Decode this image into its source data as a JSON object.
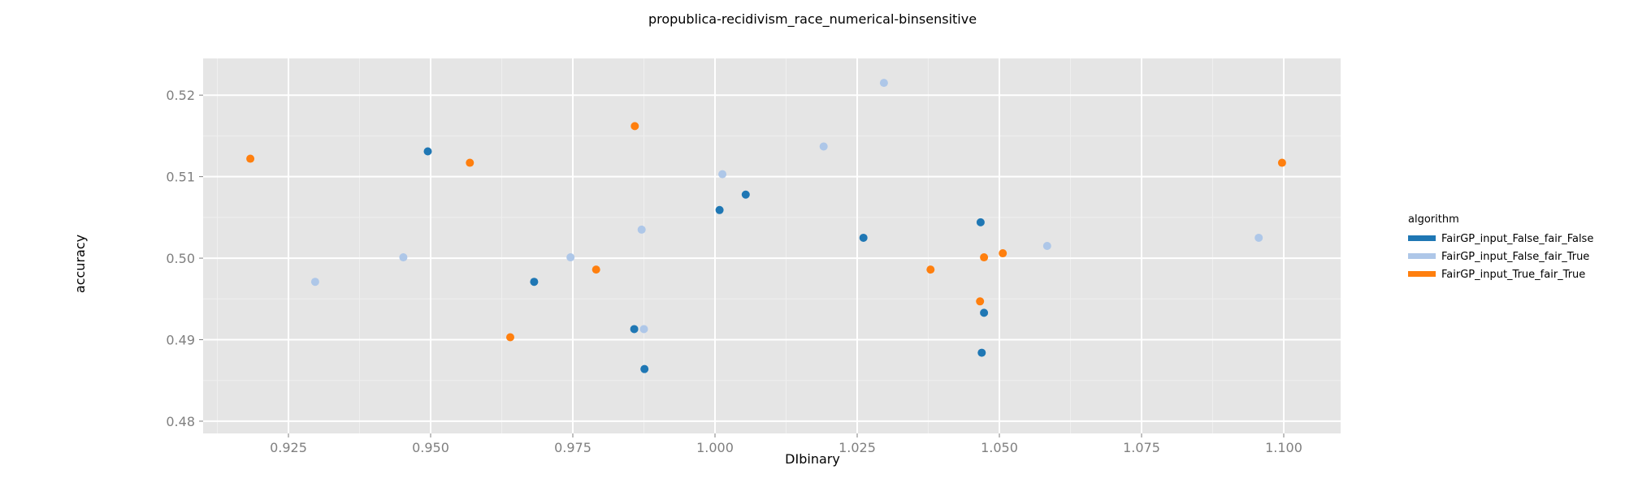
{
  "chart_data": {
    "type": "scatter",
    "title": "propublica-recidivism_race_numerical-binsensitive",
    "xlabel": "DIbinary",
    "ylabel": "accuracy",
    "xlim": [
      0.91,
      1.11
    ],
    "ylim": [
      0.4785,
      0.5245
    ],
    "x_ticks": [
      0.925,
      0.95,
      0.975,
      1.0,
      1.025,
      1.05,
      1.075,
      1.1
    ],
    "x_tick_labels": [
      "0.925",
      "0.950",
      "0.975",
      "1.000",
      "1.025",
      "1.050",
      "1.075",
      "1.100"
    ],
    "y_ticks": [
      0.48,
      0.49,
      0.5,
      0.51,
      0.52
    ],
    "y_tick_labels": [
      "0.48",
      "0.49",
      "0.50",
      "0.51",
      "0.52"
    ],
    "grid": true,
    "legend_title": "algorithm",
    "legend_position": "right",
    "series": [
      {
        "name": "FairGP_input_False_fair_False",
        "color": "#1f77b4",
        "points": [
          [
            0.9495,
            0.5131
          ],
          [
            0.9682,
            0.4971
          ],
          [
            0.9858,
            0.4913
          ],
          [
            0.9876,
            0.4864
          ],
          [
            1.0008,
            0.5059
          ],
          [
            1.0054,
            0.5078
          ],
          [
            1.0261,
            0.5025
          ],
          [
            1.0467,
            0.5044
          ],
          [
            1.0469,
            0.4884
          ],
          [
            1.0473,
            0.4933
          ]
        ]
      },
      {
        "name": "FairGP_input_False_fair_True",
        "color": "#aec7e8",
        "points": [
          [
            0.9297,
            0.4971
          ],
          [
            0.9452,
            0.5001
          ],
          [
            0.9746,
            0.5001
          ],
          [
            0.9871,
            0.5035
          ],
          [
            0.9875,
            0.4913
          ],
          [
            1.0013,
            0.5103
          ],
          [
            1.0191,
            0.5137
          ],
          [
            1.0297,
            0.5215
          ],
          [
            1.0584,
            0.5015
          ],
          [
            1.0956,
            0.5025
          ]
        ]
      },
      {
        "name": "FairGP_input_True_fair_True",
        "color": "#ff7f0e",
        "points": [
          [
            0.9183,
            0.5122
          ],
          [
            0.9569,
            0.5117
          ],
          [
            0.964,
            0.4903
          ],
          [
            0.9791,
            0.4986
          ],
          [
            0.9859,
            0.5162
          ],
          [
            1.0379,
            0.4986
          ],
          [
            1.0466,
            0.4947
          ],
          [
            1.0473,
            0.5001
          ],
          [
            1.0506,
            0.5006
          ],
          [
            1.0997,
            0.5117
          ]
        ]
      }
    ]
  }
}
